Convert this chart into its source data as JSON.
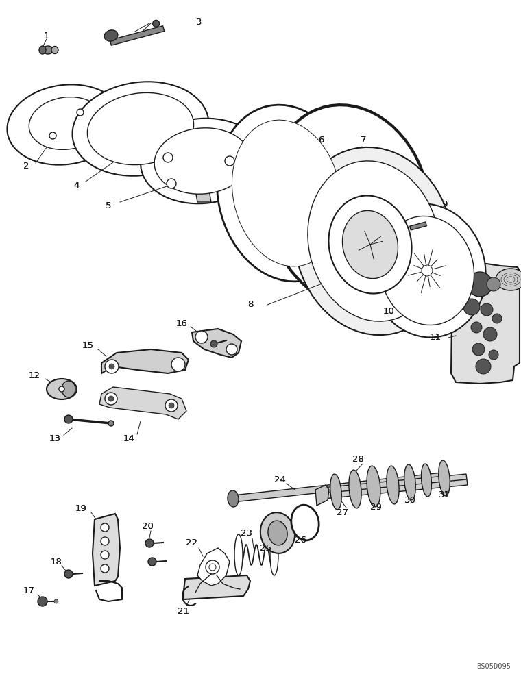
{
  "bg_color": "#ffffff",
  "lc": "#1a1a1a",
  "watermark": "BS05D095",
  "figsize": [
    7.6,
    10.0
  ],
  "dpi": 100
}
